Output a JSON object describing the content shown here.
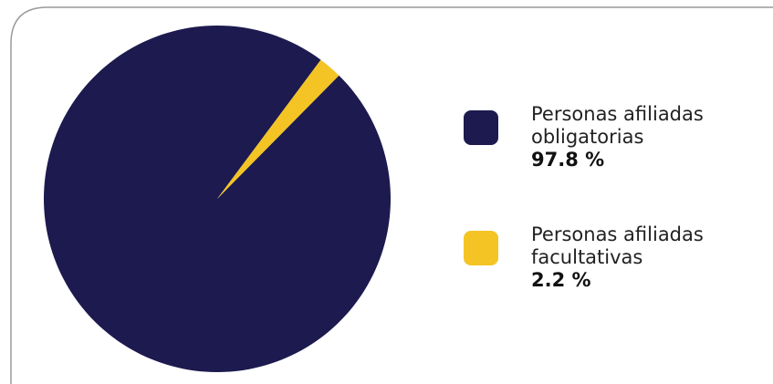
{
  "chart_data": {
    "type": "pie",
    "categories": [
      "Personas afiliadas obligatorias",
      "Personas afiliadas facultativas"
    ],
    "values": [
      97.8,
      2.2
    ],
    "value_labels": [
      "97.8 %",
      "2.2 %"
    ],
    "colors": [
      "#1c1a4e",
      "#f4c425"
    ]
  }
}
